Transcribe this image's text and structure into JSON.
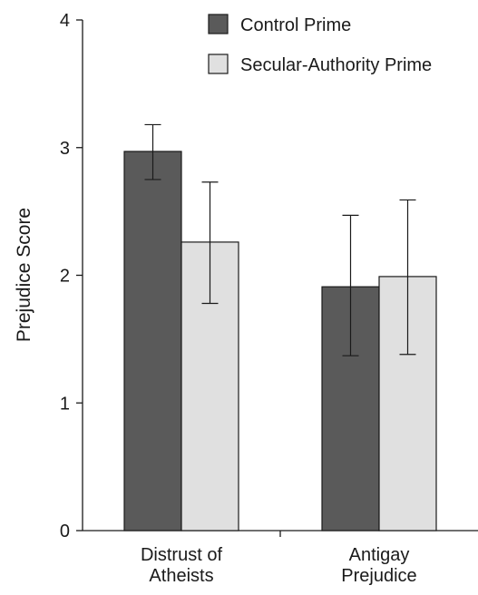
{
  "chart_data": {
    "type": "bar",
    "title": "",
    "xlabel": "",
    "ylabel": "Prejudice Score",
    "ylim": [
      0,
      4
    ],
    "yticks": [
      "0",
      "1",
      "2",
      "3",
      "4"
    ],
    "grid": false,
    "legend_position": "top-right",
    "categories": [
      [
        "Distrust of",
        "Atheists"
      ],
      [
        "Antigay",
        "Prejudice"
      ]
    ],
    "series": [
      {
        "name": "Control Prime",
        "color": "#5a5a5a",
        "values": [
          2.97,
          1.91
        ],
        "error_low": [
          2.75,
          1.37
        ],
        "error_high": [
          3.18,
          2.47
        ]
      },
      {
        "name": "Secular-Authority Prime",
        "color": "#e0e0e0",
        "values": [
          2.26,
          1.99
        ],
        "error_low": [
          1.78,
          1.38
        ],
        "error_high": [
          2.73,
          2.59
        ]
      }
    ]
  }
}
